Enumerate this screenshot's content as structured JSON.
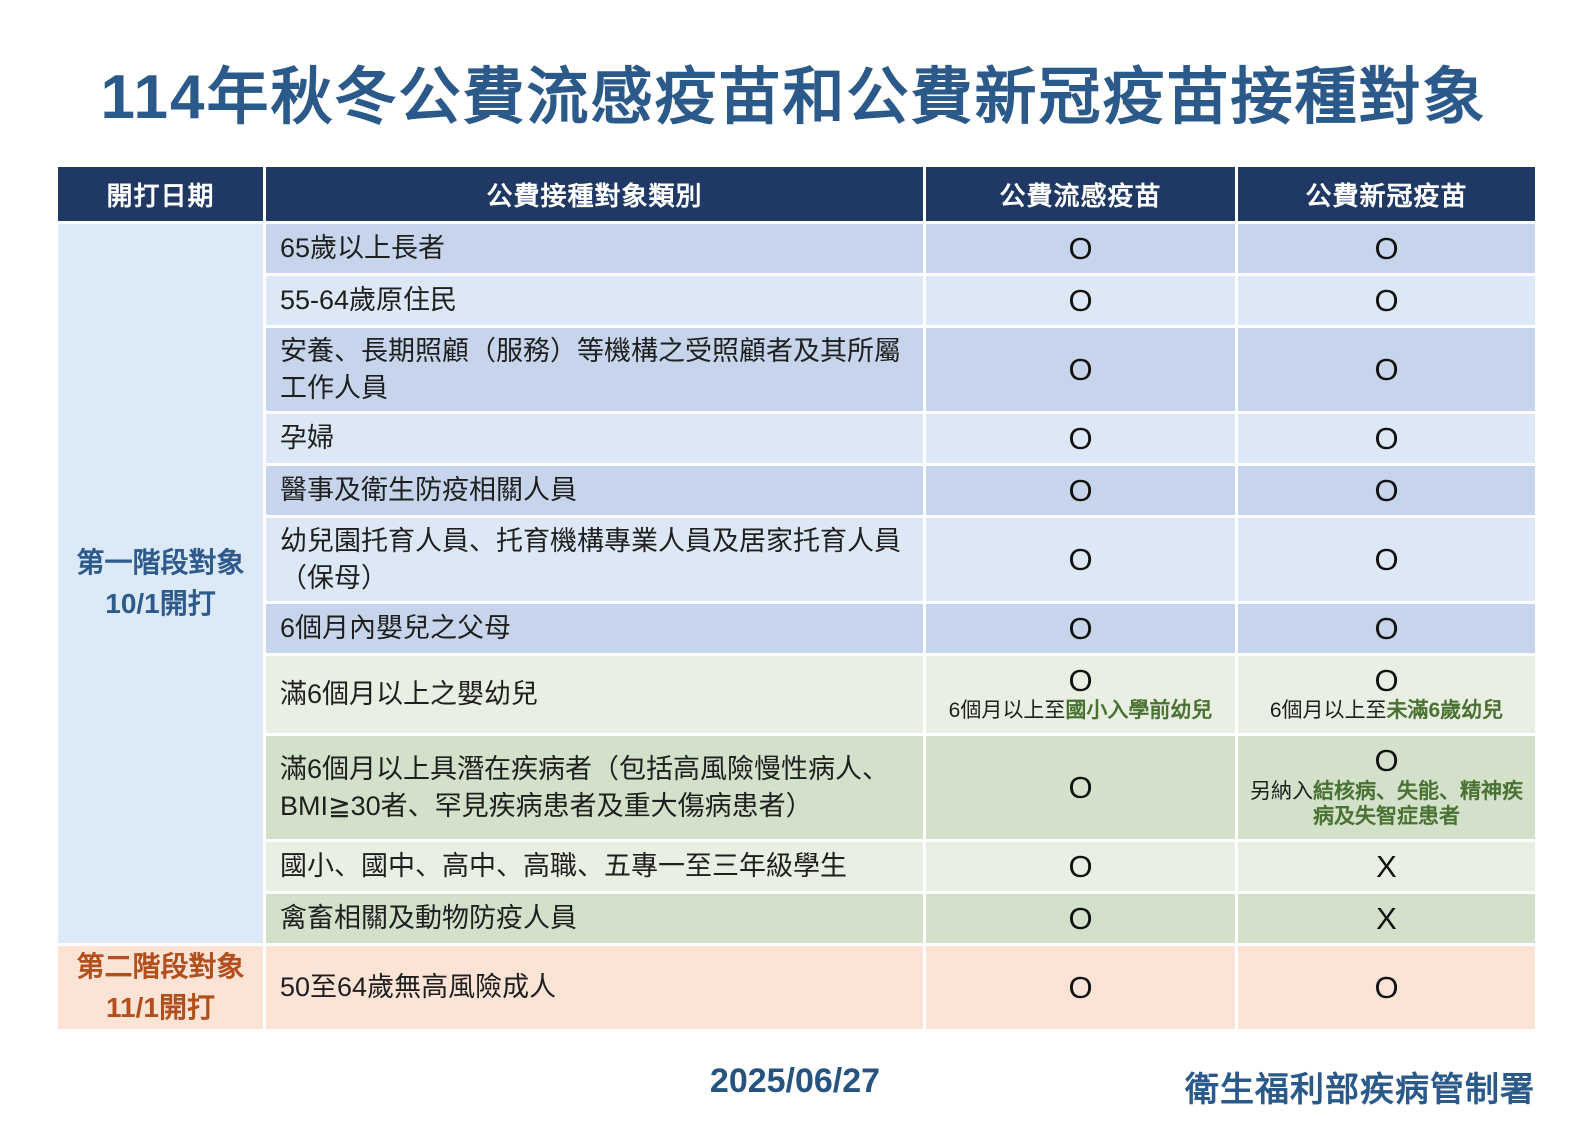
{
  "title": "114年秋冬公費流感疫苗和公費新冠疫苗接種對象",
  "table": {
    "headers": [
      "開打日期",
      "公費接種對象類別",
      "公費流感疫苗",
      "公費新冠疫苗"
    ],
    "stage1": {
      "line1": "第一階段對象",
      "line2": "10/1開打"
    },
    "stage2": {
      "line1": "第二階段對象",
      "line2": "11/1開打"
    },
    "rows": [
      {
        "category": "65歲以上長者",
        "flu": "O",
        "covid": "O"
      },
      {
        "category": "55-64歲原住民",
        "flu": "O",
        "covid": "O"
      },
      {
        "category": "安養、長期照顧（服務）等機構之受照顧者及其所屬工作人員",
        "flu": "O",
        "covid": "O"
      },
      {
        "category": "孕婦",
        "flu": "O",
        "covid": "O"
      },
      {
        "category": "醫事及衛生防疫相關人員",
        "flu": "O",
        "covid": "O"
      },
      {
        "category": "幼兒園托育人員、托育機構專業人員及居家托育人員（保母）",
        "flu": "O",
        "covid": "O"
      },
      {
        "category": "6個月內嬰兒之父母",
        "flu": "O",
        "covid": "O"
      },
      {
        "category": "滿6個月以上之嬰幼兒",
        "flu": "O",
        "covid": "O",
        "flu_note_plain": "6個月以上至",
        "flu_note_green": "國小入學前幼兒",
        "covid_note_plain": "6個月以上至",
        "covid_note_green": "未滿6歲幼兒"
      },
      {
        "category": "滿6個月以上具潛在疾病者（包括高風險慢性病人、BMI≧30者、罕見疾病患者及重大傷病患者）",
        "flu": "O",
        "covid": "O",
        "covid_note_plain": "另納入",
        "covid_note_green": "結核病、失能、精神疾病及失智症患者"
      },
      {
        "category": "國小、國中、高中、高職、五專一至三年級學生",
        "flu": "O",
        "covid": "X"
      },
      {
        "category": "禽畜相關及動物防疫人員",
        "flu": "O",
        "covid": "X"
      },
      {
        "category": "50至64歲無高風險成人",
        "flu": "O",
        "covid": "O"
      }
    ]
  },
  "footer": {
    "date": "2025/06/27",
    "agency": "衛生福利部疾病管制署"
  },
  "colors": {
    "title_blue": "#2B5A8A",
    "header_navy": "#1F3864",
    "row_blue_dark": "#C6D5EB",
    "row_blue_light": "#DCE8F5",
    "row_green_light": "#EAEFE3",
    "row_green_dark": "#D3E0CA",
    "row_peach": "#FBE3D5",
    "stage1_text": "#2E5B8C",
    "stage2_text": "#B34F1D",
    "note_green": "#4A7233"
  }
}
